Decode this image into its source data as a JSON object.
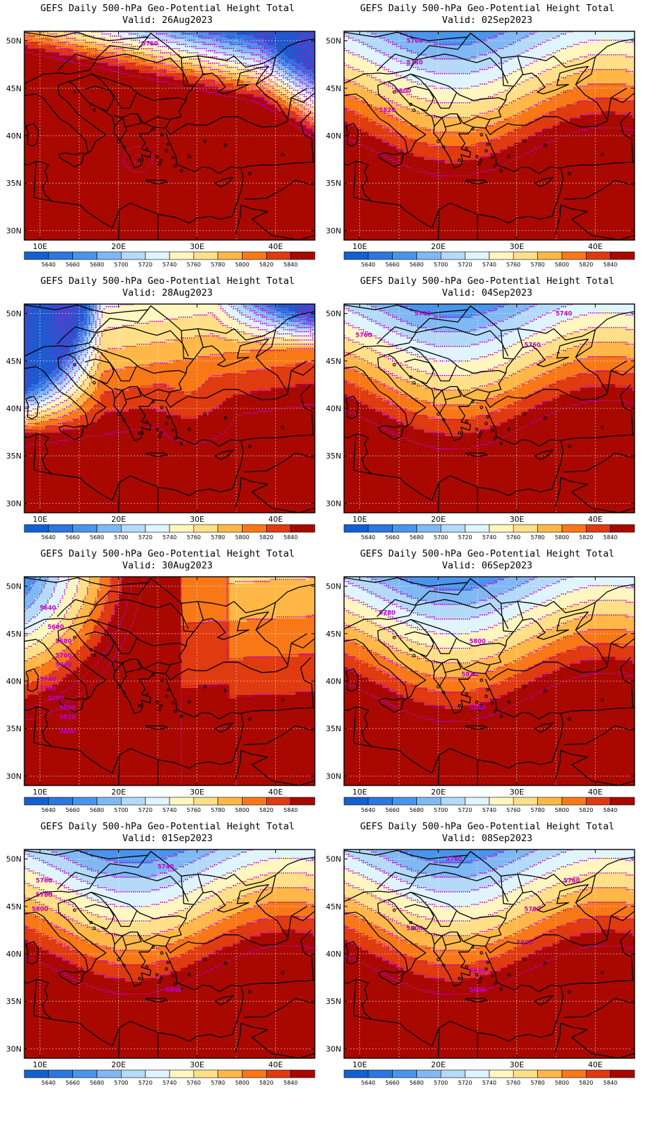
{
  "title_line1": "GEFS Daily 500-hPa Geo-Potential Height Total",
  "lat_labels": [
    "50N",
    "45N",
    "40N",
    "35N",
    "30N"
  ],
  "lat_values": [
    50,
    45,
    40,
    35,
    30
  ],
  "lon_labels": [
    "10E",
    "20E",
    "30E",
    "40E"
  ],
  "lon_values": [
    10,
    20,
    30,
    40
  ],
  "colorbar": {
    "levels": [
      "5640",
      "5660",
      "5680",
      "5700",
      "5720",
      "5740",
      "5760",
      "5780",
      "5800",
      "5820",
      "5840"
    ],
    "colors": [
      "#1560d0",
      "#2a78e0",
      "#4a94ec",
      "#80b8f4",
      "#b4daf8",
      "#e0f4fc",
      "#fff6c0",
      "#ffe088",
      "#ffb848",
      "#f87818",
      "#e03a10",
      "#a80800"
    ]
  },
  "contour_color": "#c000c0",
  "panels": [
    {
      "id": "p1",
      "valid": "Valid: 26Aug2023",
      "mode": "ridge",
      "contour_labels": [
        {
          "text": "5760",
          "lon": 24,
          "lat": 49.5
        }
      ]
    },
    {
      "id": "p2",
      "valid": "Valid: 02Sep2023",
      "mode": "band",
      "contour_labels": [
        {
          "text": "5760",
          "lon": 17,
          "lat": 49.8
        },
        {
          "text": "5780",
          "lon": 17,
          "lat": 47.5
        },
        {
          "text": "5800",
          "lon": 15.5,
          "lat": 44.5
        },
        {
          "text": "5820",
          "lon": 13.5,
          "lat": 42.5
        }
      ]
    },
    {
      "id": "p3",
      "valid": "Valid: 28Aug2023",
      "mode": "trough",
      "contour_labels": []
    },
    {
      "id": "p4",
      "valid": "Valid: 04Sep2023",
      "mode": "band",
      "contour_labels": [
        {
          "text": "5740",
          "lon": 18,
          "lat": 49.8
        },
        {
          "text": "5740",
          "lon": 36,
          "lat": 49.8
        },
        {
          "text": "5760",
          "lon": 10.5,
          "lat": 47.5
        },
        {
          "text": "5760",
          "lon": 32,
          "lat": 46.5
        }
      ]
    },
    {
      "id": "p5",
      "valid": "Valid: 30Aug2023",
      "mode": "deep",
      "contour_labels": [
        {
          "text": "5640",
          "lon": 11,
          "lat": 47.5
        },
        {
          "text": "5660",
          "lon": 12,
          "lat": 45.5
        },
        {
          "text": "5680",
          "lon": 13,
          "lat": 44
        },
        {
          "text": "5700",
          "lon": 13,
          "lat": 42.5
        },
        {
          "text": "5720",
          "lon": 13,
          "lat": 41.5
        },
        {
          "text": "5740",
          "lon": 11,
          "lat": 40
        },
        {
          "text": "5760",
          "lon": 11,
          "lat": 39
        },
        {
          "text": "5780",
          "lon": 12,
          "lat": 38
        },
        {
          "text": "5800",
          "lon": 13.5,
          "lat": 37
        },
        {
          "text": "5820",
          "lon": 13.5,
          "lat": 36
        },
        {
          "text": "5840",
          "lon": 13.5,
          "lat": 34.5
        }
      ]
    },
    {
      "id": "p6",
      "valid": "Valid: 06Sep2023",
      "mode": "band",
      "contour_labels": [
        {
          "text": "5780",
          "lon": 13.5,
          "lat": 47
        },
        {
          "text": "5800",
          "lon": 25,
          "lat": 44
        },
        {
          "text": "5820",
          "lon": 24,
          "lat": 40.5
        },
        {
          "text": "5840",
          "lon": 25,
          "lat": 37
        }
      ]
    },
    {
      "id": "p7",
      "valid": "Valid: 01Sep2023",
      "mode": "band",
      "contour_labels": [
        {
          "text": "5740",
          "lon": 26,
          "lat": 49
        },
        {
          "text": "5760",
          "lon": 10.5,
          "lat": 47.5
        },
        {
          "text": "5780",
          "lon": 10.5,
          "lat": 46
        },
        {
          "text": "5800",
          "lon": 10,
          "lat": 44.5
        },
        {
          "text": "5840",
          "lon": 27,
          "lat": 36
        }
      ]
    },
    {
      "id": "p8",
      "valid": "Valid: 08Sep2023",
      "mode": "band",
      "contour_labels": [
        {
          "text": "5760",
          "lon": 22,
          "lat": 49.8
        },
        {
          "text": "5760",
          "lon": 37,
          "lat": 47.5
        },
        {
          "text": "5780",
          "lon": 32,
          "lat": 44.5
        },
        {
          "text": "5800",
          "lon": 17,
          "lat": 42.5
        },
        {
          "text": "5800",
          "lon": 31,
          "lat": 41
        },
        {
          "text": "5820",
          "lon": 25,
          "lat": 38
        },
        {
          "text": "5840",
          "lon": 25,
          "lat": 36
        }
      ]
    }
  ]
}
